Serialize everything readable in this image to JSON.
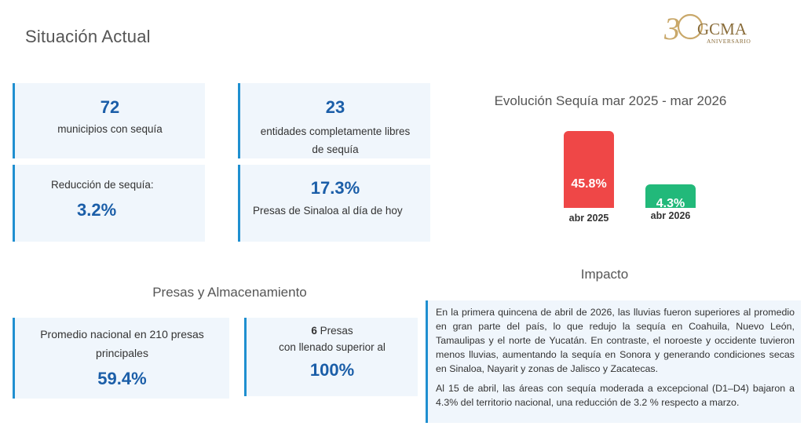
{
  "page": {
    "title": "Situación Actual"
  },
  "logo": {
    "text": "30GCMA",
    "subtitle": "ANIVERSARIO"
  },
  "stats": {
    "municipios": {
      "value": "72",
      "label": "municipios con sequía"
    },
    "entidades": {
      "value": "23",
      "label": "entidades completamente libres de sequía"
    },
    "reduccion": {
      "label": "Reducción de sequía:",
      "value": "3.2%"
    },
    "presas_sinaloa": {
      "value": "17.3%",
      "label": "Presas de Sinaloa al día de hoy"
    }
  },
  "evolution": {
    "title": "Evolución Sequía mar 2025 - mar 2026"
  },
  "chart_data": {
    "type": "bar",
    "title": "Evolución Sequía mar 2025 - mar 2026",
    "categories": [
      "abr 2025",
      "abr 2026"
    ],
    "values": [
      45.8,
      4.3
    ],
    "value_labels": [
      "45.8%",
      "4.3%"
    ],
    "colors": [
      "#ef4747",
      "#22b97a"
    ],
    "xlabel": "",
    "ylabel": ""
  },
  "storage": {
    "title": "Presas y Almacenamiento",
    "promedio": {
      "label": "Promedio nacional en 210 presas principales",
      "value": "59.4%"
    },
    "presas": {
      "count": "6",
      "label_1": "Presas",
      "label_2": "con llenado superior al",
      "value": "100%"
    }
  },
  "impact": {
    "title": "Impacto",
    "paragraph_1": "En la primera quincena de abril de 2026, las lluvias fueron superiores al promedio en gran parte del país, lo que redujo la sequía en Coahuila, Nuevo León, Tamaulipas y el norte de Yucatán. En contraste, el noroeste y occidente tuvieron menos lluvias, aumentando la sequía en Sonora y generando condiciones secas en Sinaloa, Nayarit y zonas de Jalisco y Zacatecas.",
    "paragraph_2": "Al 15 de abril, las áreas con sequía moderada a excepcional (D1–D4) bajaron a 4.3% del territorio nacional, una reducción de 3.2 % respecto a marzo."
  },
  "colors": {
    "accent": "#1f8fd0",
    "number": "#1b5ea8",
    "card_bg": "#f0f6fc",
    "gold": "#b8965a"
  }
}
